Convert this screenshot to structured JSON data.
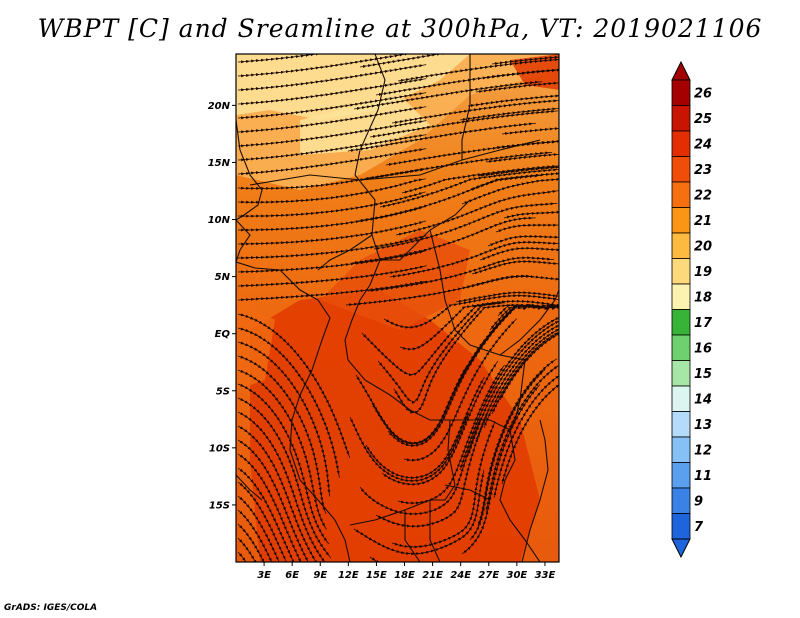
{
  "title": "WBPT [C] and Sreamline at 300hPa, VT: 2019021106",
  "credit": "GrADS: IGES/COLA",
  "map": {
    "lon_labels": [
      "3E",
      "6E",
      "9E",
      "12E",
      "15E",
      "18E",
      "21E",
      "24E",
      "27E",
      "30E",
      "33E"
    ],
    "lon_values": [
      3,
      6,
      9,
      12,
      15,
      18,
      21,
      24,
      27,
      30,
      33
    ],
    "lat_labels": [
      "20N",
      "15N",
      "10N",
      "5N",
      "EQ",
      "5S",
      "10S",
      "15S"
    ],
    "lat_values": [
      20,
      15,
      10,
      5,
      0,
      -5,
      -10,
      -15
    ],
    "lon_range": [
      0,
      34.5
    ],
    "lat_range": [
      -20,
      24.5
    ]
  },
  "colorbar": {
    "labels": [
      "26",
      "25",
      "24",
      "23",
      "22",
      "21",
      "20",
      "19",
      "18",
      "17",
      "16",
      "15",
      "14",
      "13",
      "12",
      "11",
      "9",
      "7"
    ],
    "colors": [
      "#a50000",
      "#c81400",
      "#e22e00",
      "#f04e08",
      "#f7700f",
      "#fb9614",
      "#fcbb40",
      "#fcd97a",
      "#fdf3b0",
      "#37b437",
      "#6fd06f",
      "#a6e6a6",
      "#dcf5f0",
      "#b4dcfa",
      "#87c0f5",
      "#5aa0ee",
      "#3a82e6",
      "#1e64dc"
    ]
  },
  "colors": {
    "warm_max": "#e03a00",
    "warm_mid": "#f06a10",
    "warm_low": "#fbb458",
    "cool": "#fde39a"
  }
}
